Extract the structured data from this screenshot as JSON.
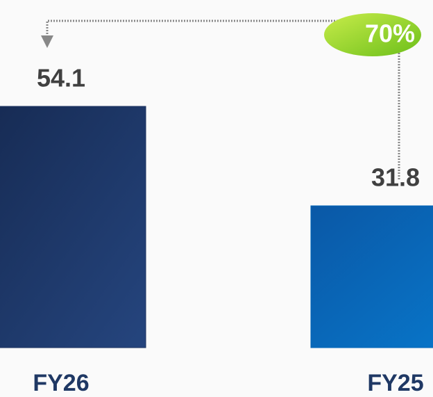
{
  "chart_data": {
    "type": "bar",
    "categories": [
      "FY26",
      "FY25"
    ],
    "values": [
      54.1,
      31.8
    ],
    "colors": [
      "#1c3260",
      "#0466b8"
    ],
    "annotation": "70%"
  }
}
